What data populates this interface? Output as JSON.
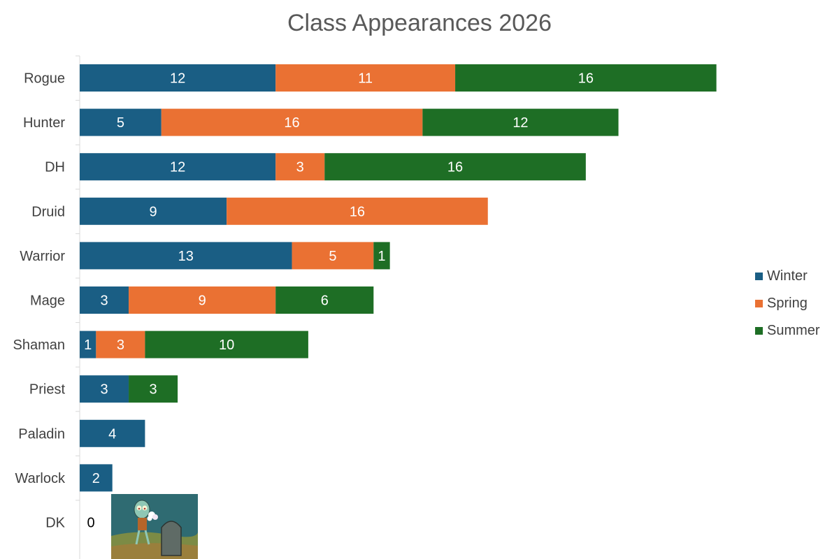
{
  "chart_data": {
    "type": "bar",
    "orientation": "horizontal",
    "stacked": true,
    "title": "Class Appearances 2026",
    "categories": [
      "Rogue",
      "Hunter",
      "DH",
      "Druid",
      "Warrior",
      "Mage",
      "Shaman",
      "Priest",
      "Paladin",
      "Warlock",
      "DK"
    ],
    "series": [
      {
        "name": "Winter",
        "color": "#1a5e84",
        "values": [
          12,
          5,
          12,
          9,
          13,
          3,
          1,
          3,
          4,
          2,
          0
        ]
      },
      {
        "name": "Spring",
        "color": "#ea7133",
        "values": [
          11,
          16,
          3,
          16,
          5,
          9,
          3,
          0,
          0,
          0,
          0
        ]
      },
      {
        "name": "Summer",
        "color": "#1e6e25",
        "values": [
          16,
          12,
          16,
          0,
          1,
          6,
          10,
          3,
          0,
          0,
          0
        ]
      }
    ],
    "zero_label": "0",
    "legend_position": "right",
    "grid": false
  },
  "meme_image": {
    "description_icon": "squidward-grave-icon"
  }
}
